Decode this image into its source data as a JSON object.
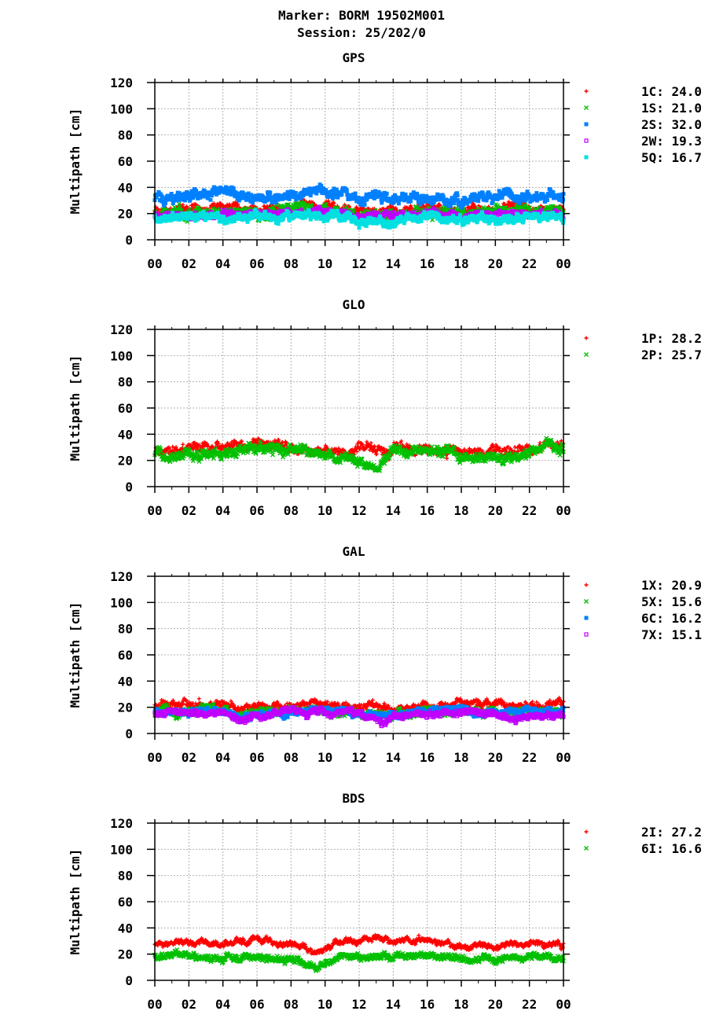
{
  "header": {
    "marker": "Marker: BORM 19502M001",
    "session": "Session: 25/202/0"
  },
  "chart_data": [
    {
      "type": "scatter",
      "title": "GPS",
      "ylabel": "Multipath [cm]",
      "ylim": [
        0,
        120
      ],
      "xlim": [
        0,
        24
      ],
      "x_tick_labels": [
        "00",
        "02",
        "04",
        "06",
        "08",
        "10",
        "12",
        "14",
        "16",
        "18",
        "20",
        "22",
        "00"
      ],
      "y_ticks": [
        0,
        20,
        40,
        60,
        80,
        100,
        120
      ],
      "grid": true,
      "legend": "right",
      "series": [
        {
          "name": "1C",
          "legend_value": "24.0",
          "marker": "plus",
          "color": "#ff0000",
          "profile": [
            [
              0,
              22
            ],
            [
              2,
              24
            ],
            [
              4,
              26
            ],
            [
              6,
              23
            ],
            [
              8,
              25
            ],
            [
              10,
              26
            ],
            [
              12,
              22
            ],
            [
              14,
              21
            ],
            [
              16,
              24
            ],
            [
              18,
              23
            ],
            [
              20,
              25
            ],
            [
              22,
              24
            ],
            [
              24,
              22
            ]
          ],
          "spread": 4
        },
        {
          "name": "1S",
          "legend_value": "21.0",
          "marker": "cross",
          "color": "#00c000",
          "profile": [
            [
              0,
              20
            ],
            [
              2,
              21
            ],
            [
              4,
              22
            ],
            [
              6,
              20
            ],
            [
              8,
              24
            ],
            [
              10,
              22
            ],
            [
              12,
              18
            ],
            [
              14,
              19
            ],
            [
              16,
              21
            ],
            [
              18,
              20
            ],
            [
              20,
              22
            ],
            [
              22,
              21
            ],
            [
              24,
              20
            ]
          ],
          "spread": 5
        },
        {
          "name": "2S",
          "legend_value": "32.0",
          "marker": "square",
          "color": "#0080ff",
          "profile": [
            [
              0,
              32
            ],
            [
              2,
              33
            ],
            [
              4,
              35
            ],
            [
              6,
              33
            ],
            [
              8,
              34
            ],
            [
              10,
              38
            ],
            [
              12,
              32
            ],
            [
              14,
              33
            ],
            [
              16,
              31
            ],
            [
              18,
              30
            ],
            [
              20,
              34
            ],
            [
              22,
              33
            ],
            [
              24,
              34
            ]
          ],
          "spread": 5
        },
        {
          "name": "2W",
          "legend_value": "19.3",
          "marker": "open-square",
          "color": "#c000ff",
          "profile": [
            [
              0,
              18
            ],
            [
              2,
              19
            ],
            [
              4,
              20
            ],
            [
              6,
              19
            ],
            [
              8,
              21
            ],
            [
              10,
              21
            ],
            [
              12,
              18
            ],
            [
              14,
              19
            ],
            [
              16,
              20
            ],
            [
              18,
              18
            ],
            [
              20,
              20
            ],
            [
              22,
              20
            ],
            [
              24,
              19
            ]
          ],
          "spread": 3
        },
        {
          "name": "5Q",
          "legend_value": "16.7",
          "marker": "filled-square",
          "color": "#00e0e0",
          "profile": [
            [
              0,
              17
            ],
            [
              2,
              18
            ],
            [
              4,
              16
            ],
            [
              6,
              17
            ],
            [
              8,
              18
            ],
            [
              10,
              19
            ],
            [
              12,
              15
            ],
            [
              14,
              14
            ],
            [
              16,
              16
            ],
            [
              18,
              15
            ],
            [
              20,
              17
            ],
            [
              22,
              18
            ],
            [
              24,
              17
            ]
          ],
          "spread": 4
        }
      ]
    },
    {
      "type": "scatter",
      "title": "GLO",
      "ylabel": "Multipath [cm]",
      "ylim": [
        0,
        120
      ],
      "xlim": [
        0,
        24
      ],
      "x_tick_labels": [
        "00",
        "02",
        "04",
        "06",
        "08",
        "10",
        "12",
        "14",
        "16",
        "18",
        "20",
        "22",
        "00"
      ],
      "y_ticks": [
        0,
        20,
        40,
        60,
        80,
        100,
        120
      ],
      "grid": true,
      "legend": "right",
      "series": [
        {
          "name": "1P",
          "legend_value": "28.2",
          "marker": "plus",
          "color": "#ff0000",
          "profile": [
            [
              0,
              28
            ],
            [
              2,
              30
            ],
            [
              4,
              29
            ],
            [
              6,
              32
            ],
            [
              8,
              30
            ],
            [
              10,
              26
            ],
            [
              12,
              27
            ],
            [
              14,
              29
            ],
            [
              16,
              28
            ],
            [
              18,
              26
            ],
            [
              20,
              25
            ],
            [
              22,
              29
            ],
            [
              23,
              34
            ],
            [
              24,
              28
            ]
          ],
          "spread": 5
        },
        {
          "name": "2P",
          "legend_value": "25.7",
          "marker": "cross",
          "color": "#00c000",
          "profile": [
            [
              0,
              26
            ],
            [
              2,
              26
            ],
            [
              4,
              24
            ],
            [
              6,
              29
            ],
            [
              8,
              28
            ],
            [
              10,
              23
            ],
            [
              12,
              20
            ],
            [
              13,
              18
            ],
            [
              14,
              26
            ],
            [
              16,
              26
            ],
            [
              18,
              24
            ],
            [
              20,
              21
            ],
            [
              22,
              25
            ],
            [
              23,
              32
            ],
            [
              24,
              26
            ]
          ],
          "spread": 5
        }
      ]
    },
    {
      "type": "scatter",
      "title": "GAL",
      "ylabel": "Multipath [cm]",
      "ylim": [
        0,
        120
      ],
      "xlim": [
        0,
        24
      ],
      "x_tick_labels": [
        "00",
        "02",
        "04",
        "06",
        "08",
        "10",
        "12",
        "14",
        "16",
        "18",
        "20",
        "22",
        "00"
      ],
      "y_ticks": [
        0,
        20,
        40,
        60,
        80,
        100,
        120
      ],
      "grid": true,
      "legend": "right",
      "series": [
        {
          "name": "1X",
          "legend_value": "20.9",
          "marker": "plus",
          "color": "#ff0000",
          "profile": [
            [
              0,
              21
            ],
            [
              2,
              22
            ],
            [
              4,
              23
            ],
            [
              5,
              18
            ],
            [
              6,
              20
            ],
            [
              8,
              22
            ],
            [
              10,
              22
            ],
            [
              12,
              20
            ],
            [
              14,
              19
            ],
            [
              16,
              22
            ],
            [
              18,
              24
            ],
            [
              20,
              20
            ],
            [
              22,
              22
            ],
            [
              24,
              22
            ]
          ],
          "spread": 4
        },
        {
          "name": "5X",
          "legend_value": "15.6",
          "marker": "cross",
          "color": "#00c000",
          "profile": [
            [
              0,
              16
            ],
            [
              2,
              17
            ],
            [
              4,
              17
            ],
            [
              5,
              13
            ],
            [
              6,
              15
            ],
            [
              8,
              17
            ],
            [
              10,
              17
            ],
            [
              12,
              15
            ],
            [
              14,
              14
            ],
            [
              16,
              16
            ],
            [
              18,
              18
            ],
            [
              20,
              15
            ],
            [
              22,
              16
            ],
            [
              24,
              17
            ]
          ],
          "spread": 4
        },
        {
          "name": "6C",
          "legend_value": "16.2",
          "marker": "filled-square",
          "color": "#0080ff",
          "profile": [
            [
              0,
              17
            ],
            [
              2,
              17
            ],
            [
              4,
              18
            ],
            [
              5,
              13
            ],
            [
              6,
              15
            ],
            [
              8,
              17
            ],
            [
              10,
              18
            ],
            [
              12,
              15
            ],
            [
              14,
              15
            ],
            [
              16,
              17
            ],
            [
              18,
              19
            ],
            [
              20,
              15
            ],
            [
              22,
              16
            ],
            [
              24,
              18
            ]
          ],
          "spread": 3
        },
        {
          "name": "7X",
          "legend_value": "15.1",
          "marker": "open-square",
          "color": "#c000ff",
          "profile": [
            [
              0,
              15
            ],
            [
              2,
              16
            ],
            [
              4,
              16
            ],
            [
              5,
              10
            ],
            [
              6,
              14
            ],
            [
              8,
              16
            ],
            [
              10,
              16
            ],
            [
              12,
              14
            ],
            [
              13.5,
              10
            ],
            [
              14,
              13
            ],
            [
              16,
              15
            ],
            [
              18,
              16
            ],
            [
              20,
              14
            ],
            [
              21,
              11
            ],
            [
              22,
              12
            ],
            [
              24,
              14
            ]
          ],
          "spread": 3
        }
      ]
    },
    {
      "type": "scatter",
      "title": "BDS",
      "ylabel": "Multipath [cm]",
      "ylim": [
        0,
        120
      ],
      "xlim": [
        0,
        24
      ],
      "x_tick_labels": [
        "00",
        "02",
        "04",
        "06",
        "08",
        "10",
        "12",
        "14",
        "16",
        "18",
        "20",
        "22",
        "00"
      ],
      "y_ticks": [
        0,
        20,
        40,
        60,
        80,
        100,
        120
      ],
      "grid": true,
      "legend": "right",
      "series": [
        {
          "name": "2I",
          "legend_value": "27.2",
          "marker": "plus",
          "color": "#ff0000",
          "profile": [
            [
              0,
              27
            ],
            [
              2,
              28
            ],
            [
              4,
              29
            ],
            [
              6,
              31
            ],
            [
              8,
              28
            ],
            [
              9.5,
              22
            ],
            [
              11,
              30
            ],
            [
              13,
              32
            ],
            [
              14,
              30
            ],
            [
              16,
              31
            ],
            [
              18,
              26
            ],
            [
              20,
              26
            ],
            [
              22,
              29
            ],
            [
              24,
              26
            ]
          ],
          "spread": 3
        },
        {
          "name": "6I",
          "legend_value": "16.6",
          "marker": "cross",
          "color": "#00c000",
          "profile": [
            [
              0,
              18
            ],
            [
              2,
              19
            ],
            [
              4,
              17
            ],
            [
              6,
              18
            ],
            [
              8,
              16
            ],
            [
              9.5,
              10
            ],
            [
              11,
              18
            ],
            [
              13,
              19
            ],
            [
              14,
              17
            ],
            [
              16,
              19
            ],
            [
              18,
              15
            ],
            [
              20,
              16
            ],
            [
              22,
              18
            ],
            [
              24,
              16
            ]
          ],
          "spread": 3
        }
      ]
    }
  ]
}
